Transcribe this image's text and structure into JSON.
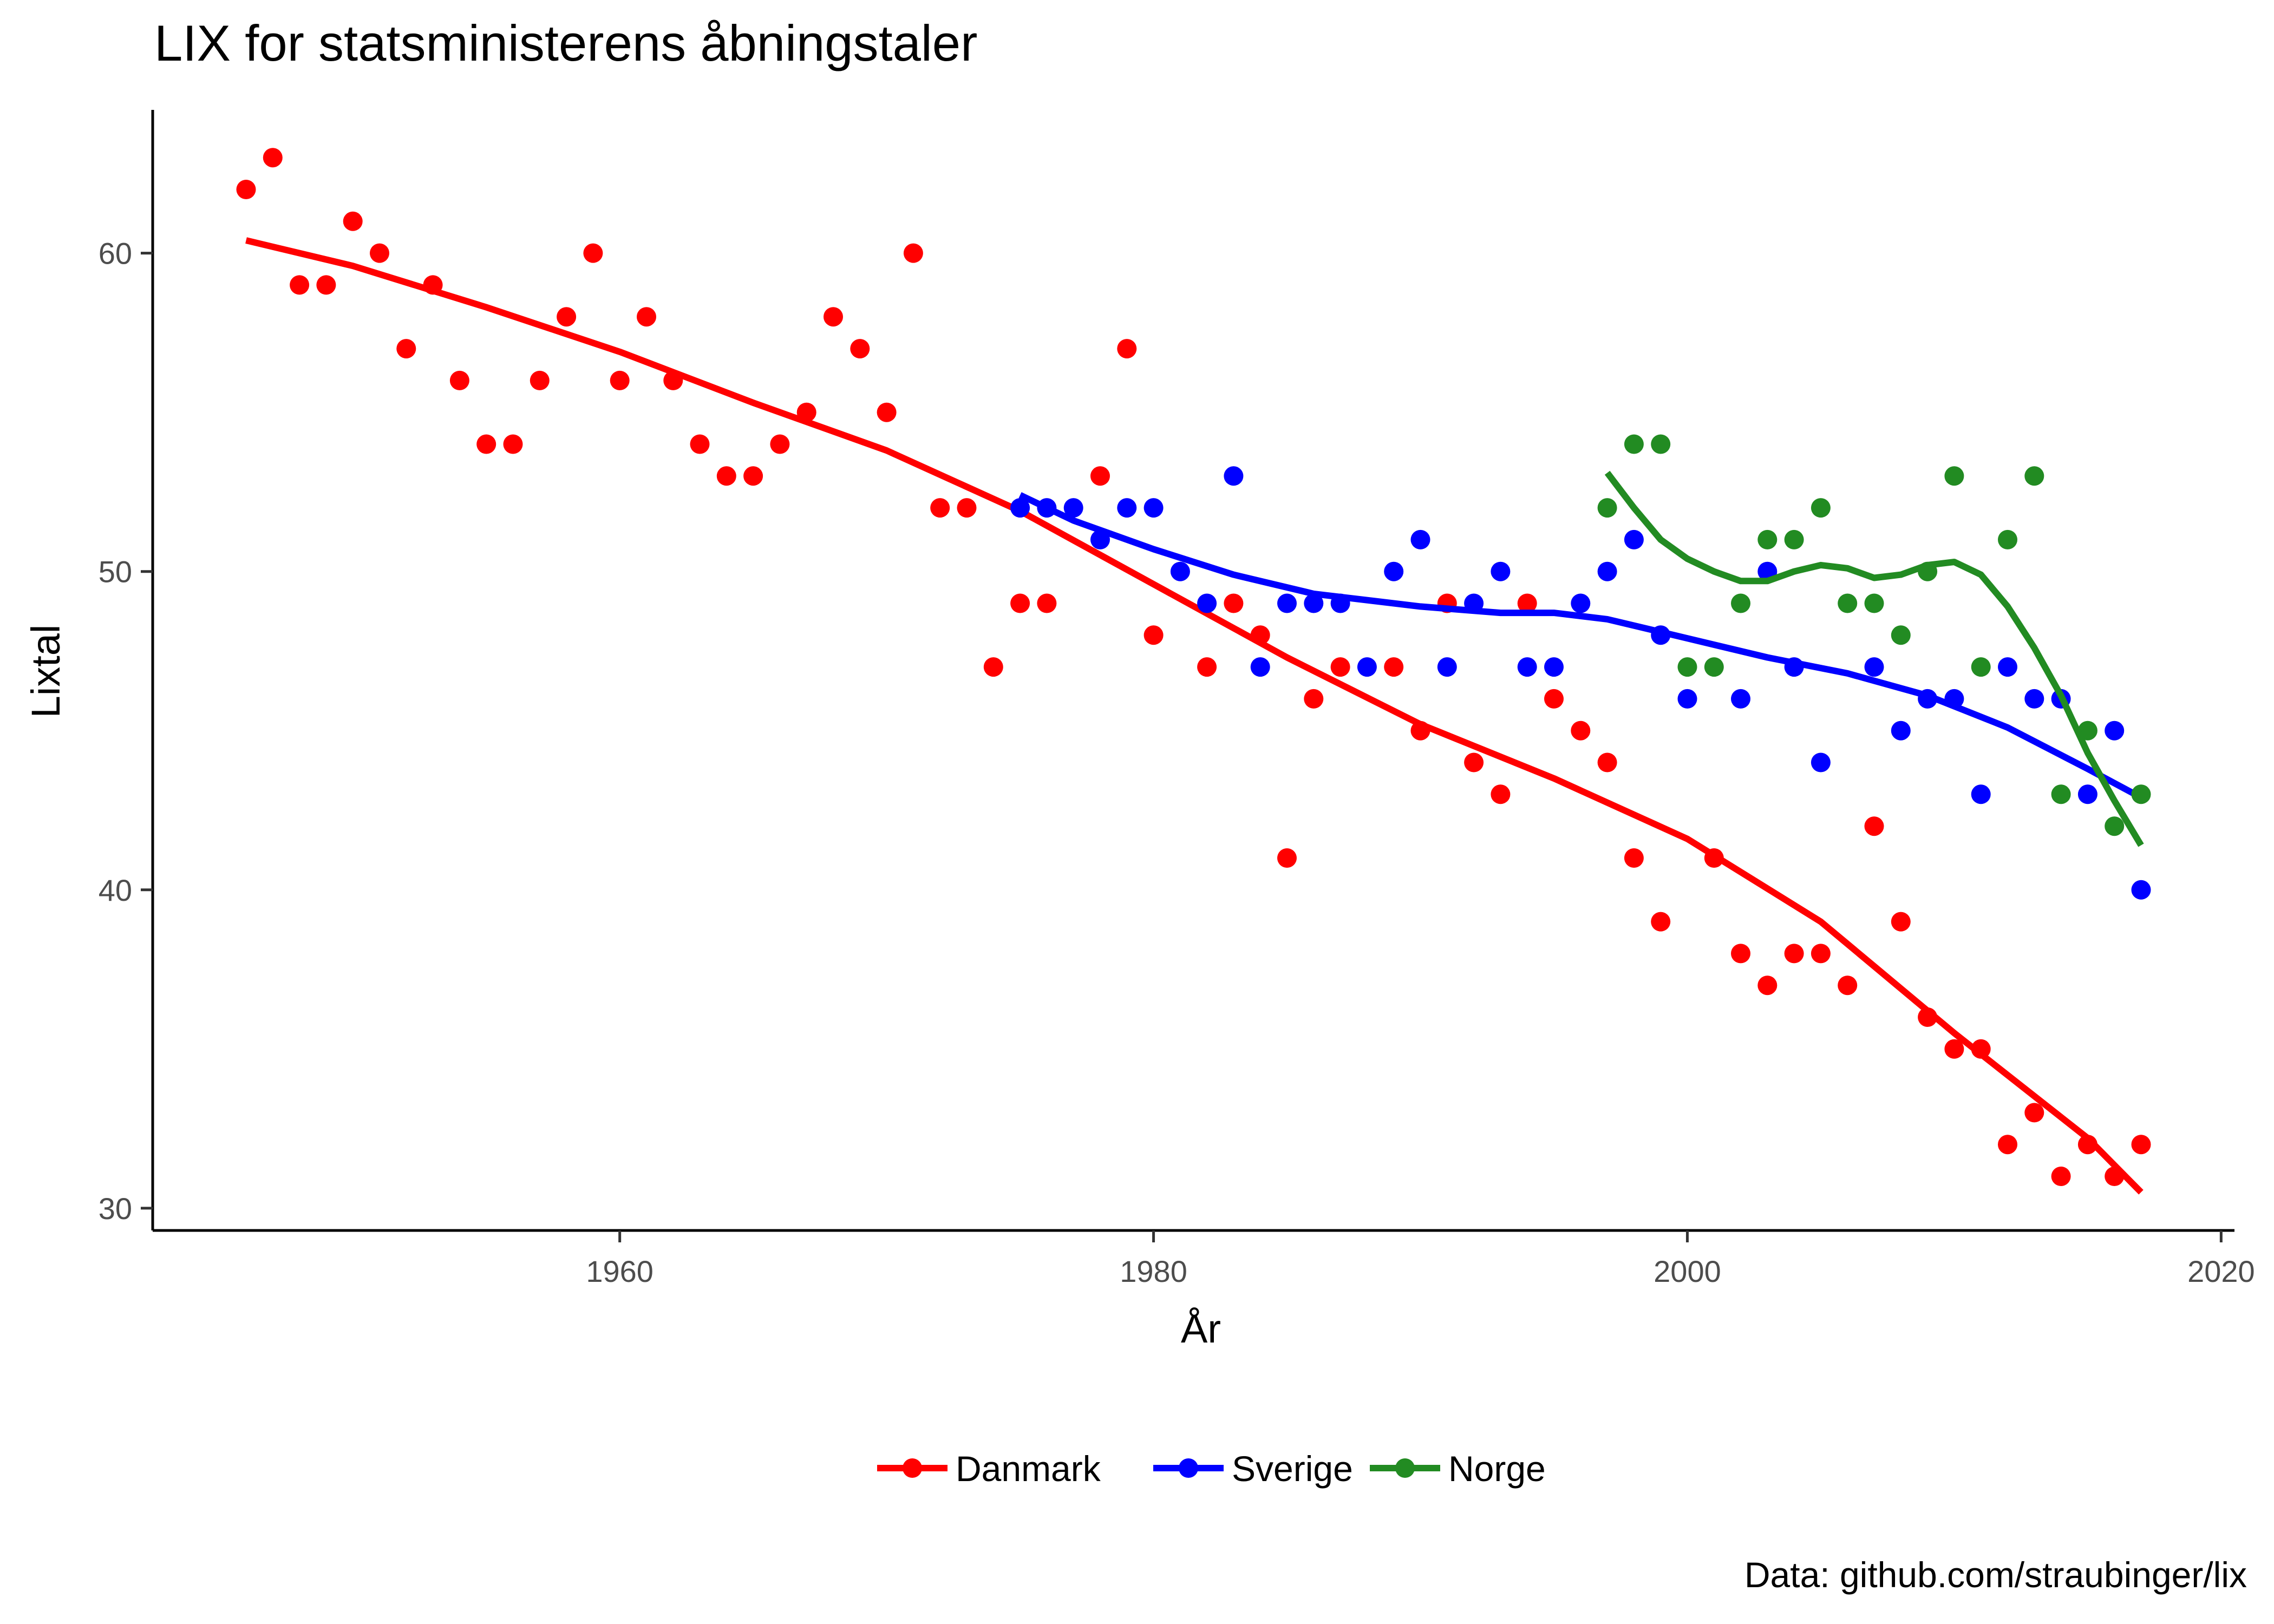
{
  "chart_data": {
    "type": "scatter",
    "title": "LIX for statsministerens åbningstaler",
    "xlabel": "År",
    "ylabel": "Lixtal",
    "caption": "Data: github.com/straubinger/lix",
    "xlim": [
      1942.5,
      2020.5
    ],
    "ylim": [
      29.3,
      64.5
    ],
    "x_ticks": [
      1960,
      1980,
      2000,
      2020
    ],
    "y_ticks": [
      30,
      40,
      50,
      60
    ],
    "grid": false,
    "legend_position": "bottom",
    "series": [
      {
        "name": "Danmark",
        "color": "#FF0000",
        "points": [
          [
            1946,
            62
          ],
          [
            1947,
            63
          ],
          [
            1948,
            59
          ],
          [
            1949,
            59
          ],
          [
            1950,
            61
          ],
          [
            1951,
            60
          ],
          [
            1952,
            57
          ],
          [
            1953,
            59
          ],
          [
            1954,
            56
          ],
          [
            1955,
            54
          ],
          [
            1956,
            54
          ],
          [
            1957,
            56
          ],
          [
            1958,
            58
          ],
          [
            1959,
            60
          ],
          [
            1960,
            56
          ],
          [
            1961,
            58
          ],
          [
            1962,
            56
          ],
          [
            1963,
            54
          ],
          [
            1964,
            53
          ],
          [
            1965,
            53
          ],
          [
            1966,
            54
          ],
          [
            1967,
            55
          ],
          [
            1968,
            58
          ],
          [
            1969,
            57
          ],
          [
            1970,
            55
          ],
          [
            1971,
            60
          ],
          [
            1972,
            52
          ],
          [
            1973,
            52
          ],
          [
            1974,
            47
          ],
          [
            1975,
            49
          ],
          [
            1976,
            49
          ],
          [
            1978,
            53
          ],
          [
            1979,
            57
          ],
          [
            1980,
            48
          ],
          [
            1982,
            47
          ],
          [
            1983,
            49
          ],
          [
            1984,
            48
          ],
          [
            1985,
            41
          ],
          [
            1986,
            46
          ],
          [
            1987,
            47
          ],
          [
            1989,
            47
          ],
          [
            1990,
            45
          ],
          [
            1991,
            49
          ],
          [
            1992,
            44
          ],
          [
            1993,
            43
          ],
          [
            1994,
            49
          ],
          [
            1995,
            46
          ],
          [
            1996,
            45
          ],
          [
            1997,
            44
          ],
          [
            1998,
            41
          ],
          [
            1999,
            39
          ],
          [
            2001,
            41
          ],
          [
            2002,
            38
          ],
          [
            2003,
            37
          ],
          [
            2004,
            38
          ],
          [
            2005,
            38
          ],
          [
            2006,
            37
          ],
          [
            2007,
            42
          ],
          [
            2008,
            39
          ],
          [
            2009,
            36
          ],
          [
            2010,
            35
          ],
          [
            2011,
            35
          ],
          [
            2012,
            32
          ],
          [
            2013,
            33
          ],
          [
            2014,
            31
          ],
          [
            2015,
            32
          ],
          [
            2016,
            31
          ],
          [
            2017,
            32
          ]
        ],
        "trend": [
          [
            1946,
            60.4
          ],
          [
            1950,
            59.6
          ],
          [
            1955,
            58.3
          ],
          [
            1960,
            56.9
          ],
          [
            1965,
            55.3
          ],
          [
            1970,
            53.8
          ],
          [
            1975,
            51.9
          ],
          [
            1980,
            49.6
          ],
          [
            1985,
            47.3
          ],
          [
            1990,
            45.2
          ],
          [
            1995,
            43.5
          ],
          [
            2000,
            41.6
          ],
          [
            2005,
            39.0
          ],
          [
            2010,
            35.5
          ],
          [
            2015,
            32.2
          ],
          [
            2017,
            30.5
          ]
        ]
      },
      {
        "name": "Sverige",
        "color": "#0000FF",
        "points": [
          [
            1975,
            52
          ],
          [
            1976,
            52
          ],
          [
            1977,
            52
          ],
          [
            1978,
            51
          ],
          [
            1979,
            52
          ],
          [
            1980,
            52
          ],
          [
            1981,
            50
          ],
          [
            1982,
            49
          ],
          [
            1983,
            53
          ],
          [
            1984,
            47
          ],
          [
            1985,
            49
          ],
          [
            1986,
            49
          ],
          [
            1987,
            49
          ],
          [
            1988,
            47
          ],
          [
            1989,
            50
          ],
          [
            1990,
            51
          ],
          [
            1991,
            47
          ],
          [
            1992,
            49
          ],
          [
            1993,
            50
          ],
          [
            1994,
            47
          ],
          [
            1995,
            47
          ],
          [
            1996,
            49
          ],
          [
            1997,
            50
          ],
          [
            1998,
            51
          ],
          [
            1999,
            48
          ],
          [
            2000,
            46
          ],
          [
            2002,
            46
          ],
          [
            2003,
            50
          ],
          [
            2004,
            47
          ],
          [
            2005,
            44
          ],
          [
            2007,
            47
          ],
          [
            2008,
            45
          ],
          [
            2009,
            46
          ],
          [
            2010,
            46
          ],
          [
            2011,
            43
          ],
          [
            2012,
            47
          ],
          [
            2013,
            46
          ],
          [
            2014,
            46
          ],
          [
            2015,
            43
          ],
          [
            2016,
            45
          ],
          [
            2017,
            40
          ]
        ],
        "trend": [
          [
            1975,
            52.4
          ],
          [
            1977,
            51.6
          ],
          [
            1980,
            50.7
          ],
          [
            1983,
            49.9
          ],
          [
            1986,
            49.3
          ],
          [
            1990,
            48.9
          ],
          [
            1993,
            48.7
          ],
          [
            1995,
            48.7
          ],
          [
            1997,
            48.5
          ],
          [
            2000,
            47.9
          ],
          [
            2003,
            47.3
          ],
          [
            2006,
            46.8
          ],
          [
            2009,
            46.1
          ],
          [
            2012,
            45.1
          ],
          [
            2015,
            43.8
          ],
          [
            2017,
            42.9
          ]
        ]
      },
      {
        "name": "Norge",
        "color": "#228B22",
        "points": [
          [
            1997,
            52
          ],
          [
            1998,
            54
          ],
          [
            1999,
            54
          ],
          [
            2000,
            47
          ],
          [
            2001,
            47
          ],
          [
            2002,
            49
          ],
          [
            2003,
            51
          ],
          [
            2004,
            51
          ],
          [
            2005,
            52
          ],
          [
            2006,
            49
          ],
          [
            2007,
            49
          ],
          [
            2008,
            48
          ],
          [
            2009,
            50
          ],
          [
            2010,
            53
          ],
          [
            2011,
            47
          ],
          [
            2012,
            51
          ],
          [
            2013,
            53
          ],
          [
            2014,
            43
          ],
          [
            2015,
            45
          ],
          [
            2016,
            42
          ],
          [
            2017,
            43
          ]
        ],
        "trend": [
          [
            1997,
            53.1
          ],
          [
            1998,
            52.0
          ],
          [
            1999,
            51.0
          ],
          [
            2000,
            50.4
          ],
          [
            2001,
            50.0
          ],
          [
            2002,
            49.7
          ],
          [
            2003,
            49.7
          ],
          [
            2004,
            50.0
          ],
          [
            2005,
            50.2
          ],
          [
            2006,
            50.1
          ],
          [
            2007,
            49.8
          ],
          [
            2008,
            49.9
          ],
          [
            2009,
            50.2
          ],
          [
            2010,
            50.3
          ],
          [
            2011,
            49.9
          ],
          [
            2012,
            48.9
          ],
          [
            2013,
            47.6
          ],
          [
            2014,
            46.1
          ],
          [
            2015,
            44.3
          ],
          [
            2016,
            42.8
          ],
          [
            2017,
            41.4
          ]
        ]
      }
    ]
  }
}
